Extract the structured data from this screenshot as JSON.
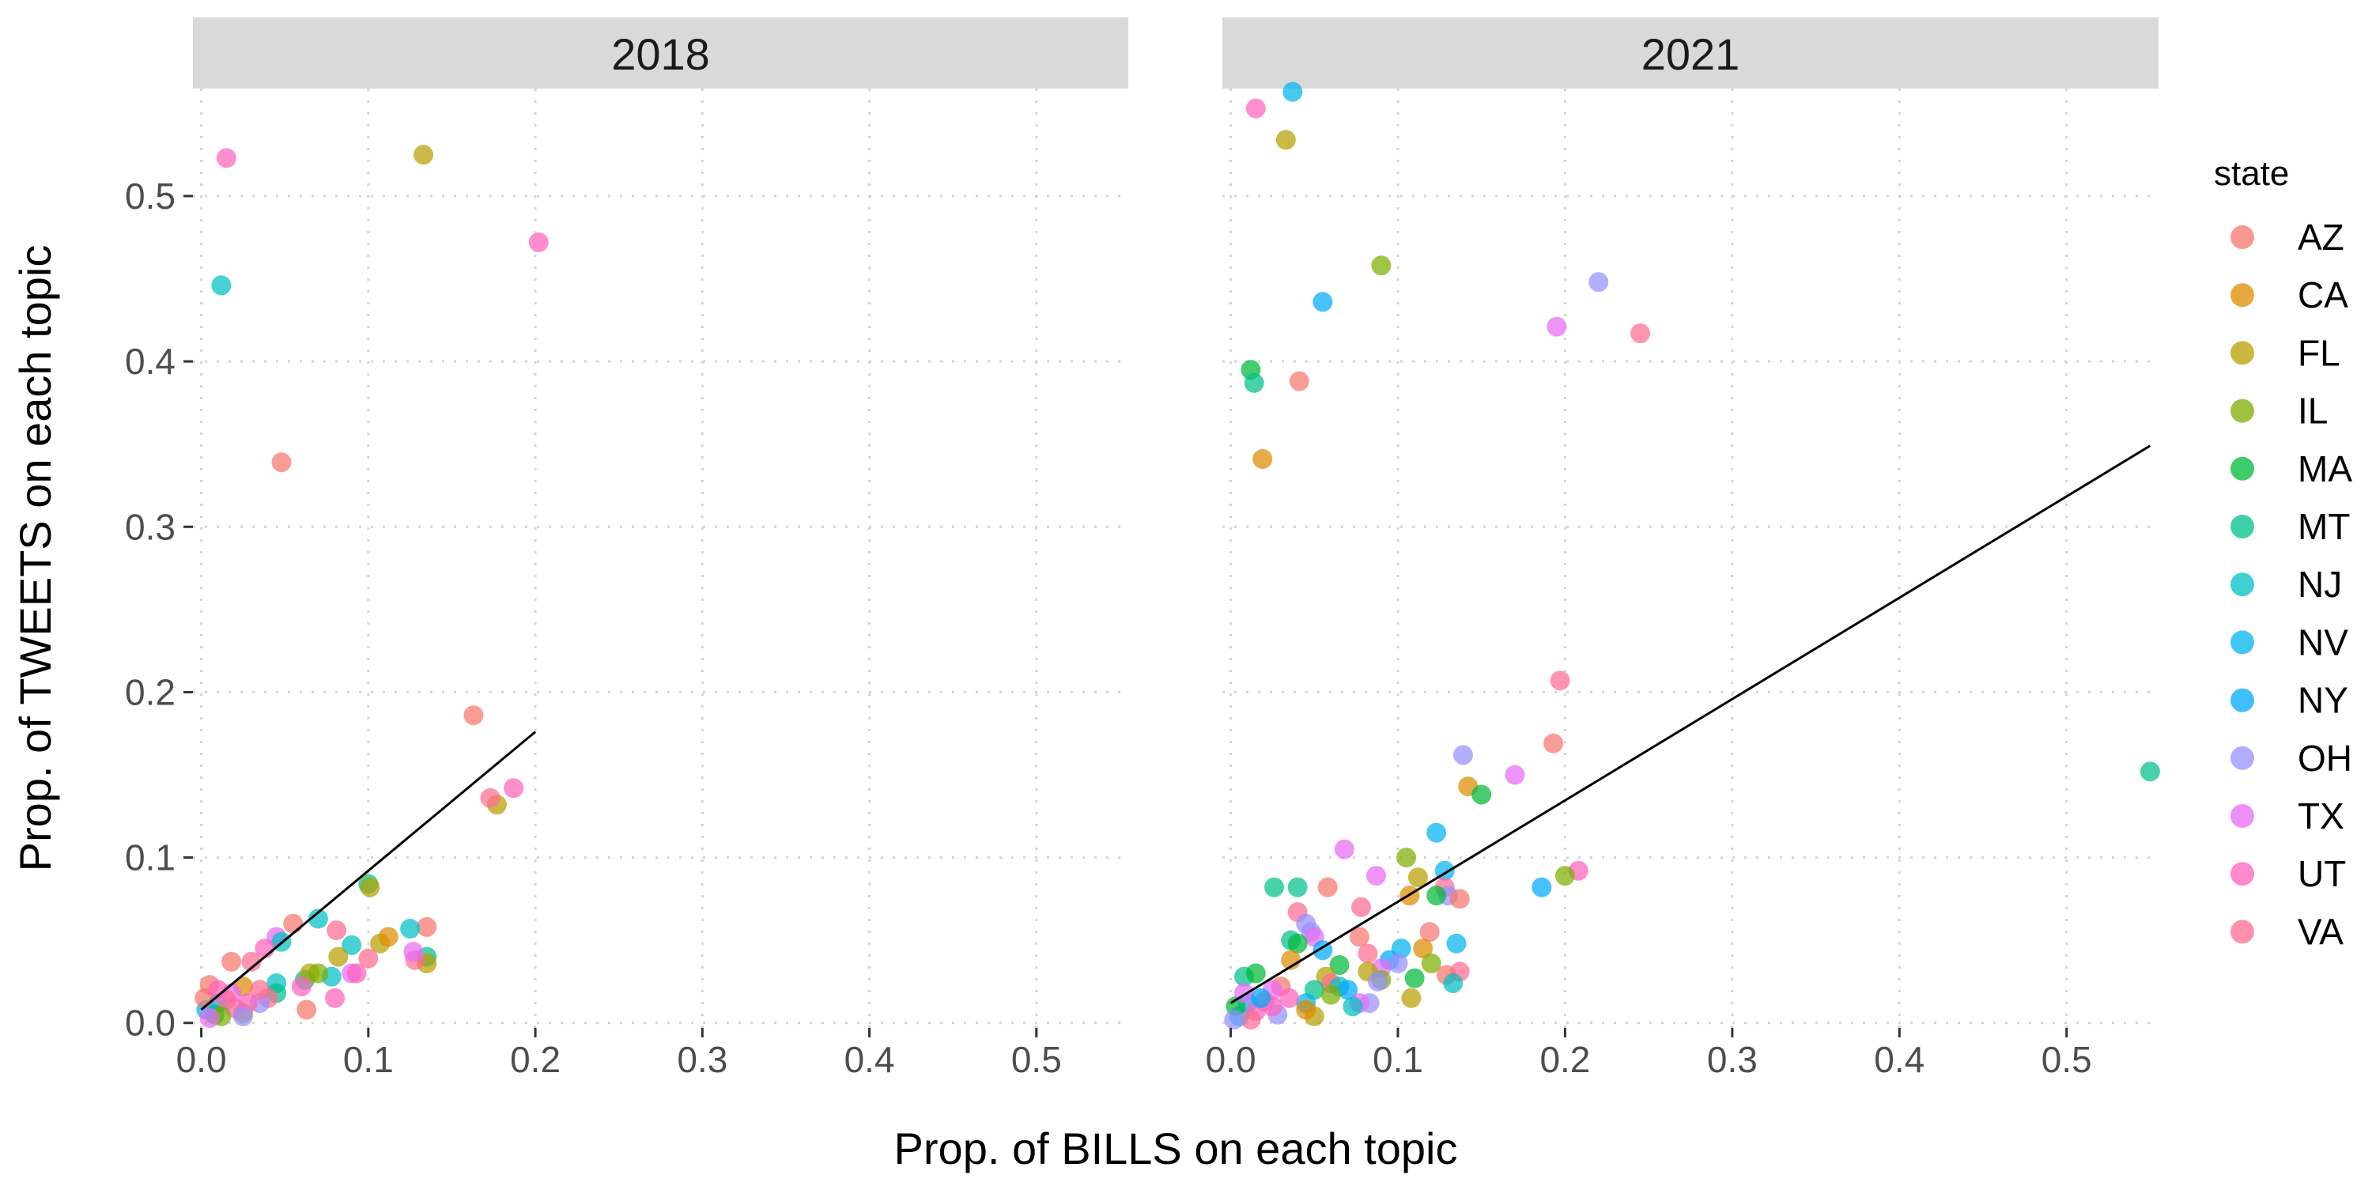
{
  "chart_data": {
    "type": "scatter",
    "xlabel": "Prop. of BILLS on each topic",
    "ylabel": "Prop. of TWEETS on each topic",
    "xlim": [
      -0.005,
      0.555
    ],
    "ylim": [
      -0.003,
      0.565
    ],
    "x_ticks": [
      0.0,
      0.1,
      0.2,
      0.3,
      0.4,
      0.5
    ],
    "x_tick_labels": [
      "0.0",
      "0.1",
      "0.2",
      "0.3",
      "0.4",
      "0.5"
    ],
    "y_ticks": [
      0.0,
      0.1,
      0.2,
      0.3,
      0.4,
      0.5
    ],
    "y_tick_labels": [
      "0.0",
      "0.1",
      "0.2",
      "0.3",
      "0.4",
      "0.5"
    ],
    "grid": true,
    "legend": {
      "title": "state",
      "position": "right",
      "entries": [
        {
          "name": "AZ",
          "color": "#F8766D"
        },
        {
          "name": "CA",
          "color": "#DE8C00"
        },
        {
          "name": "FL",
          "color": "#B79F00"
        },
        {
          "name": "IL",
          "color": "#7CAE00"
        },
        {
          "name": "MA",
          "color": "#00BA38"
        },
        {
          "name": "MT",
          "color": "#00C08B"
        },
        {
          "name": "NJ",
          "color": "#00BFC4"
        },
        {
          "name": "NV",
          "color": "#00B4F0"
        },
        {
          "name": "NY",
          "color": "#00A9FF"
        },
        {
          "name": "OH",
          "color": "#9590FF"
        },
        {
          "name": "TX",
          "color": "#E76BF3"
        },
        {
          "name": "UT",
          "color": "#FF62BC"
        },
        {
          "name": "VA",
          "color": "#FF6C91"
        }
      ]
    },
    "panels": [
      {
        "label": "2018",
        "fit_line": {
          "x": [
            0.0,
            0.2
          ],
          "y": [
            0.008,
            0.176
          ]
        },
        "points": [
          {
            "state": "UT",
            "x": 0.015,
            "y": 0.523
          },
          {
            "state": "FL",
            "x": 0.133,
            "y": 0.525
          },
          {
            "state": "UT",
            "x": 0.202,
            "y": 0.472
          },
          {
            "state": "NJ",
            "x": 0.012,
            "y": 0.446
          },
          {
            "state": "AZ",
            "x": 0.048,
            "y": 0.339
          },
          {
            "state": "AZ",
            "x": 0.163,
            "y": 0.186
          },
          {
            "state": "FL",
            "x": 0.177,
            "y": 0.132
          },
          {
            "state": "VA",
            "x": 0.173,
            "y": 0.136
          },
          {
            "state": "UT",
            "x": 0.187,
            "y": 0.142
          },
          {
            "state": "MT",
            "x": 0.1,
            "y": 0.084
          },
          {
            "state": "FL",
            "x": 0.101,
            "y": 0.082
          },
          {
            "state": "NJ",
            "x": 0.07,
            "y": 0.063
          },
          {
            "state": "AZ",
            "x": 0.055,
            "y": 0.06
          },
          {
            "state": "AZ",
            "x": 0.135,
            "y": 0.058
          },
          {
            "state": "NJ",
            "x": 0.125,
            "y": 0.057
          },
          {
            "state": "VA",
            "x": 0.081,
            "y": 0.056
          },
          {
            "state": "MT",
            "x": 0.135,
            "y": 0.04
          },
          {
            "state": "FL",
            "x": 0.135,
            "y": 0.036
          },
          {
            "state": "VA",
            "x": 0.128,
            "y": 0.038
          },
          {
            "state": "TX",
            "x": 0.127,
            "y": 0.043
          },
          {
            "state": "FL",
            "x": 0.107,
            "y": 0.048
          },
          {
            "state": "CA",
            "x": 0.112,
            "y": 0.052
          },
          {
            "state": "NJ",
            "x": 0.09,
            "y": 0.047
          },
          {
            "state": "TX",
            "x": 0.045,
            "y": 0.052
          },
          {
            "state": "NJ",
            "x": 0.048,
            "y": 0.049
          },
          {
            "state": "VA",
            "x": 0.1,
            "y": 0.039
          },
          {
            "state": "FL",
            "x": 0.082,
            "y": 0.04
          },
          {
            "state": "TX",
            "x": 0.09,
            "y": 0.03
          },
          {
            "state": "UT",
            "x": 0.093,
            "y": 0.03
          },
          {
            "state": "NJ",
            "x": 0.078,
            "y": 0.028
          },
          {
            "state": "MT",
            "x": 0.062,
            "y": 0.026
          },
          {
            "state": "FL",
            "x": 0.065,
            "y": 0.03
          },
          {
            "state": "IL",
            "x": 0.07,
            "y": 0.03
          },
          {
            "state": "AZ",
            "x": 0.063,
            "y": 0.008
          },
          {
            "state": "UT",
            "x": 0.08,
            "y": 0.015
          },
          {
            "state": "AZ",
            "x": 0.018,
            "y": 0.037
          },
          {
            "state": "VA",
            "x": 0.03,
            "y": 0.037
          },
          {
            "state": "UT",
            "x": 0.038,
            "y": 0.045
          },
          {
            "state": "NJ",
            "x": 0.045,
            "y": 0.024
          },
          {
            "state": "AZ",
            "x": 0.005,
            "y": 0.023
          },
          {
            "state": "CA",
            "x": 0.025,
            "y": 0.022
          },
          {
            "state": "UT",
            "x": 0.06,
            "y": 0.022
          },
          {
            "state": "MT",
            "x": 0.045,
            "y": 0.018
          },
          {
            "state": "VA",
            "x": 0.04,
            "y": 0.015
          },
          {
            "state": "OH",
            "x": 0.035,
            "y": 0.012
          },
          {
            "state": "FL",
            "x": 0.025,
            "y": 0.006
          },
          {
            "state": "NY",
            "x": 0.01,
            "y": 0.012
          },
          {
            "state": "TX",
            "x": 0.018,
            "y": 0.018
          },
          {
            "state": "UT",
            "x": 0.02,
            "y": 0.009
          },
          {
            "state": "VA",
            "x": 0.015,
            "y": 0.014
          },
          {
            "state": "MA",
            "x": 0.008,
            "y": 0.005
          },
          {
            "state": "NV",
            "x": 0.003,
            "y": 0.008
          },
          {
            "state": "IL",
            "x": 0.012,
            "y": 0.004
          },
          {
            "state": "UT",
            "x": 0.028,
            "y": 0.012
          },
          {
            "state": "VA",
            "x": 0.035,
            "y": 0.02
          },
          {
            "state": "TX",
            "x": 0.005,
            "y": 0.003
          },
          {
            "state": "AZ",
            "x": 0.002,
            "y": 0.015
          },
          {
            "state": "UT",
            "x": 0.01,
            "y": 0.02
          },
          {
            "state": "OH",
            "x": 0.025,
            "y": 0.004
          }
        ]
      },
      {
        "label": "2021",
        "fit_line": {
          "x": [
            0.0,
            0.55
          ],
          "y": [
            0.012,
            0.349
          ]
        },
        "points": [
          {
            "state": "NV",
            "x": 0.037,
            "y": 0.563
          },
          {
            "state": "UT",
            "x": 0.015,
            "y": 0.553
          },
          {
            "state": "FL",
            "x": 0.033,
            "y": 0.534
          },
          {
            "state": "IL",
            "x": 0.09,
            "y": 0.458
          },
          {
            "state": "OH",
            "x": 0.22,
            "y": 0.448
          },
          {
            "state": "NY",
            "x": 0.055,
            "y": 0.436
          },
          {
            "state": "TX",
            "x": 0.195,
            "y": 0.421
          },
          {
            "state": "VA",
            "x": 0.245,
            "y": 0.417
          },
          {
            "state": "MA",
            "x": 0.012,
            "y": 0.395
          },
          {
            "state": "MT",
            "x": 0.014,
            "y": 0.387
          },
          {
            "state": "AZ",
            "x": 0.041,
            "y": 0.388
          },
          {
            "state": "CA",
            "x": 0.019,
            "y": 0.341
          },
          {
            "state": "VA",
            "x": 0.197,
            "y": 0.207
          },
          {
            "state": "AZ",
            "x": 0.193,
            "y": 0.169
          },
          {
            "state": "OH",
            "x": 0.139,
            "y": 0.162
          },
          {
            "state": "TX",
            "x": 0.17,
            "y": 0.15
          },
          {
            "state": "MT",
            "x": 0.55,
            "y": 0.152
          },
          {
            "state": "CA",
            "x": 0.142,
            "y": 0.143
          },
          {
            "state": "MA",
            "x": 0.15,
            "y": 0.138
          },
          {
            "state": "NV",
            "x": 0.123,
            "y": 0.115
          },
          {
            "state": "TX",
            "x": 0.068,
            "y": 0.105
          },
          {
            "state": "IL",
            "x": 0.105,
            "y": 0.1
          },
          {
            "state": "UT",
            "x": 0.208,
            "y": 0.092
          },
          {
            "state": "IL",
            "x": 0.2,
            "y": 0.089
          },
          {
            "state": "NV",
            "x": 0.128,
            "y": 0.092
          },
          {
            "state": "TX",
            "x": 0.087,
            "y": 0.089
          },
          {
            "state": "FL",
            "x": 0.112,
            "y": 0.088
          },
          {
            "state": "NY",
            "x": 0.186,
            "y": 0.082
          },
          {
            "state": "MT",
            "x": 0.026,
            "y": 0.082
          },
          {
            "state": "MT",
            "x": 0.04,
            "y": 0.082
          },
          {
            "state": "AZ",
            "x": 0.058,
            "y": 0.082
          },
          {
            "state": "VA",
            "x": 0.128,
            "y": 0.082
          },
          {
            "state": "OH",
            "x": 0.13,
            "y": 0.077
          },
          {
            "state": "CA",
            "x": 0.107,
            "y": 0.077
          },
          {
            "state": "MA",
            "x": 0.123,
            "y": 0.077
          },
          {
            "state": "AZ",
            "x": 0.137,
            "y": 0.075
          },
          {
            "state": "VA",
            "x": 0.078,
            "y": 0.07
          },
          {
            "state": "VA",
            "x": 0.04,
            "y": 0.067
          },
          {
            "state": "OH",
            "x": 0.045,
            "y": 0.06
          },
          {
            "state": "AZ",
            "x": 0.119,
            "y": 0.055
          },
          {
            "state": "OH",
            "x": 0.048,
            "y": 0.055
          },
          {
            "state": "AZ",
            "x": 0.077,
            "y": 0.052
          },
          {
            "state": "TX",
            "x": 0.05,
            "y": 0.052
          },
          {
            "state": "MT",
            "x": 0.036,
            "y": 0.05
          },
          {
            "state": "MA",
            "x": 0.04,
            "y": 0.048
          },
          {
            "state": "NV",
            "x": 0.135,
            "y": 0.048
          },
          {
            "state": "CA",
            "x": 0.115,
            "y": 0.045
          },
          {
            "state": "NV",
            "x": 0.102,
            "y": 0.045
          },
          {
            "state": "NY",
            "x": 0.055,
            "y": 0.044
          },
          {
            "state": "VA",
            "x": 0.082,
            "y": 0.042
          },
          {
            "state": "CA",
            "x": 0.036,
            "y": 0.038
          },
          {
            "state": "NY",
            "x": 0.095,
            "y": 0.038
          },
          {
            "state": "OH",
            "x": 0.1,
            "y": 0.036
          },
          {
            "state": "IL",
            "x": 0.12,
            "y": 0.036
          },
          {
            "state": "MA",
            "x": 0.065,
            "y": 0.035
          },
          {
            "state": "TX",
            "x": 0.09,
            "y": 0.033
          },
          {
            "state": "FL",
            "x": 0.082,
            "y": 0.031
          },
          {
            "state": "VA",
            "x": 0.137,
            "y": 0.031
          },
          {
            "state": "AZ",
            "x": 0.129,
            "y": 0.029
          },
          {
            "state": "MT",
            "x": 0.008,
            "y": 0.028
          },
          {
            "state": "MA",
            "x": 0.015,
            "y": 0.03
          },
          {
            "state": "FL",
            "x": 0.057,
            "y": 0.028
          },
          {
            "state": "IL",
            "x": 0.09,
            "y": 0.026
          },
          {
            "state": "OH",
            "x": 0.088,
            "y": 0.025
          },
          {
            "state": "NJ",
            "x": 0.133,
            "y": 0.024
          },
          {
            "state": "MA",
            "x": 0.11,
            "y": 0.027
          },
          {
            "state": "VA",
            "x": 0.06,
            "y": 0.024
          },
          {
            "state": "NJ",
            "x": 0.065,
            "y": 0.022
          },
          {
            "state": "AZ",
            "x": 0.03,
            "y": 0.022
          },
          {
            "state": "NY",
            "x": 0.07,
            "y": 0.02
          },
          {
            "state": "TX",
            "x": 0.025,
            "y": 0.02
          },
          {
            "state": "MT",
            "x": 0.05,
            "y": 0.02
          },
          {
            "state": "IL",
            "x": 0.06,
            "y": 0.017
          },
          {
            "state": "FL",
            "x": 0.108,
            "y": 0.015
          },
          {
            "state": "OH",
            "x": 0.083,
            "y": 0.012
          },
          {
            "state": "TX",
            "x": 0.077,
            "y": 0.012
          },
          {
            "state": "NJ",
            "x": 0.073,
            "y": 0.01
          },
          {
            "state": "NV",
            "x": 0.045,
            "y": 0.012
          },
          {
            "state": "UT",
            "x": 0.035,
            "y": 0.015
          },
          {
            "state": "VA",
            "x": 0.02,
            "y": 0.013
          },
          {
            "state": "NY",
            "x": 0.01,
            "y": 0.012
          },
          {
            "state": "OH",
            "x": 0.028,
            "y": 0.005
          },
          {
            "state": "FL",
            "x": 0.05,
            "y": 0.004
          },
          {
            "state": "CA",
            "x": 0.045,
            "y": 0.008
          },
          {
            "state": "UT",
            "x": 0.015,
            "y": 0.007
          },
          {
            "state": "NV",
            "x": 0.005,
            "y": 0.004
          },
          {
            "state": "MA",
            "x": 0.003,
            "y": 0.01
          },
          {
            "state": "TX",
            "x": 0.008,
            "y": 0.018
          },
          {
            "state": "VA",
            "x": 0.012,
            "y": 0.002
          },
          {
            "state": "UT",
            "x": 0.025,
            "y": 0.01
          },
          {
            "state": "NY",
            "x": 0.018,
            "y": 0.015
          },
          {
            "state": "OH",
            "x": 0.002,
            "y": 0.002
          }
        ]
      }
    ]
  }
}
